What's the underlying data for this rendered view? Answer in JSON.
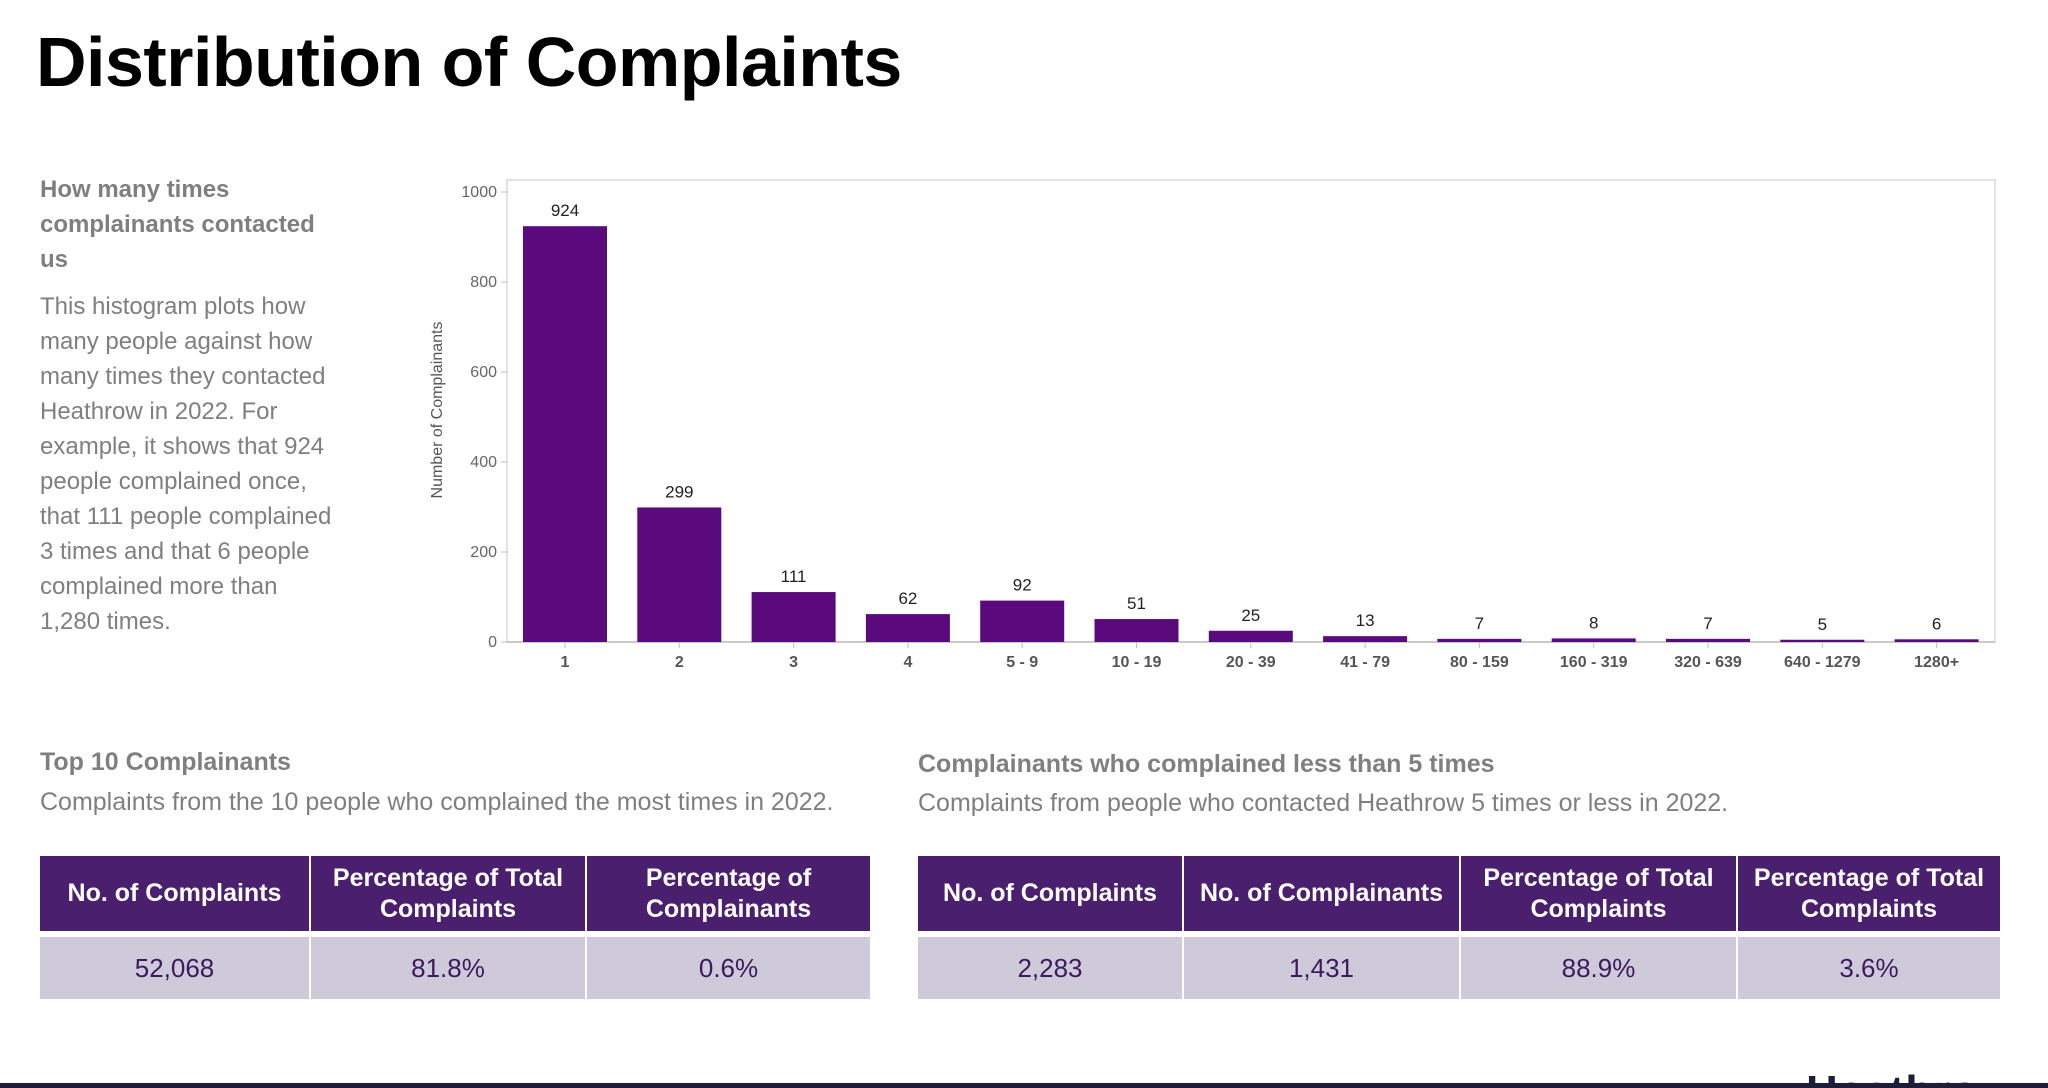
{
  "page": {
    "title": "Distribution of Complaints"
  },
  "side": {
    "heading": "How many times complainants contacted us",
    "body": "This histogram plots how many people against how many times they contacted Heathrow in 2022. For example, it shows that 924 people complained once, that 111 people complained 3 times and that 6 people complained more than 1,280 times."
  },
  "chart_data": {
    "type": "bar",
    "categories": [
      "1",
      "2",
      "3",
      "4",
      "5 - 9",
      "10 - 19",
      "20 - 39",
      "41 - 79",
      "80 - 159",
      "160 - 319",
      "320 - 639",
      "640 - 1279",
      "1280+"
    ],
    "values": [
      924,
      299,
      111,
      62,
      92,
      51,
      25,
      13,
      7,
      8,
      7,
      5,
      6
    ],
    "title": "",
    "xlabel": "",
    "ylabel": "Number of Complainants",
    "ylim": [
      0,
      1000
    ],
    "yticks": [
      0,
      200,
      400,
      600,
      800,
      1000
    ],
    "bar_color": "#5b0a7e",
    "grid": false,
    "legend": "none"
  },
  "top10": {
    "heading": "Top 10 Complainants",
    "subtitle": "Complaints from the 10 people who complained the most times in 2022.",
    "headers": [
      "No. of Complaints",
      "Percentage of Total Complaints",
      "Percentage of Complainants"
    ],
    "row": [
      "52,068",
      "81.8%",
      "0.6%"
    ]
  },
  "under5": {
    "heading": "Complainants who complained less than 5 times",
    "subtitle": "Complaints from people who contacted Heathrow 5 times or less in 2022.",
    "headers": [
      "No. of Complaints",
      "No. of Complainants",
      "Percentage of Total Complaints",
      "Percentage of Total Complaints"
    ],
    "row": [
      "2,283",
      "1,431",
      "88.9%",
      "3.6%"
    ]
  },
  "colors": {
    "header_bg": "#4a1f6e",
    "cell_bg": "#cfcada",
    "bar": "#5b0a7e"
  },
  "brand": {
    "logo_text": "Heathrow"
  }
}
